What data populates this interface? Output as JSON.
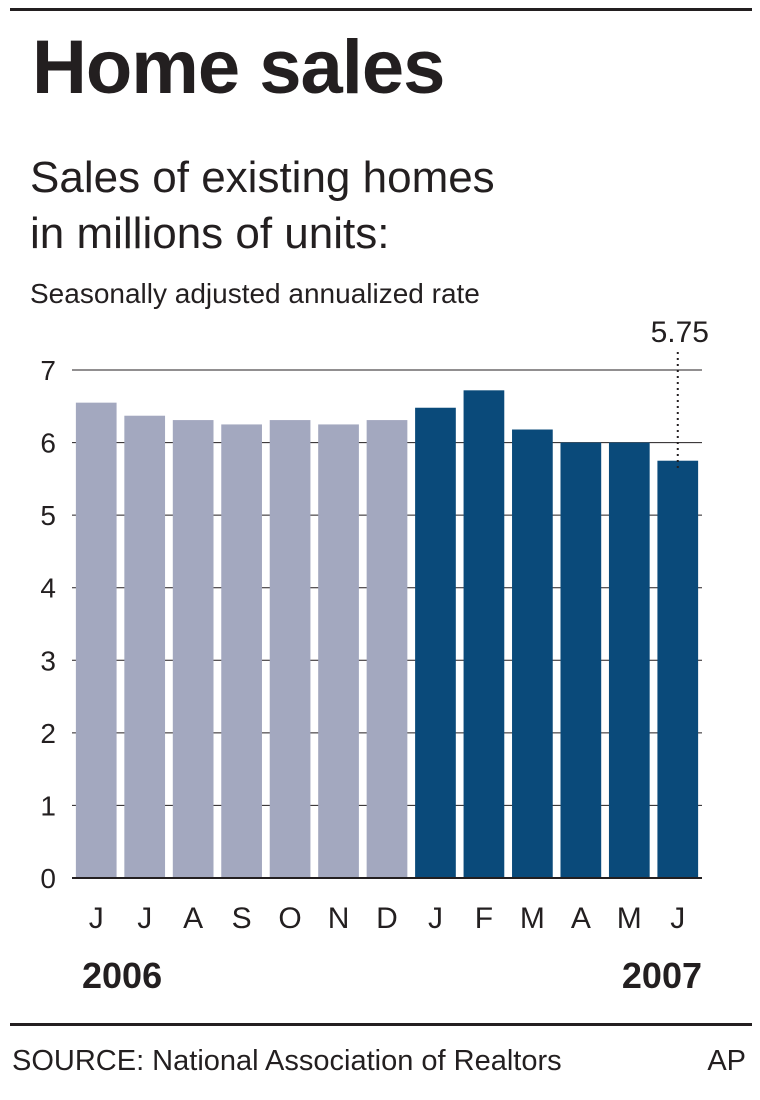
{
  "title": "Home sales",
  "subtitle_line1": "Sales of existing homes",
  "subtitle_line2": "in millions of units:",
  "note": "Seasonally adjusted annualized rate",
  "source": "SOURCE: National Association of Realtors",
  "credit": "AP",
  "colors": {
    "y2006": "#a3a8bf",
    "y2007": "#0a4a7a",
    "text": "#231f20",
    "grid": "#231f20"
  },
  "chart_data": {
    "type": "bar",
    "categories": [
      "J",
      "J",
      "A",
      "S",
      "O",
      "N",
      "D",
      "J",
      "F",
      "M",
      "A",
      "M",
      "J"
    ],
    "years": [
      "2006",
      "2007"
    ],
    "series": [
      {
        "name": "2006",
        "values": [
          6.55,
          6.37,
          6.31,
          6.25,
          6.31,
          6.25,
          6.31,
          null,
          null,
          null,
          null,
          null,
          null
        ]
      },
      {
        "name": "2007",
        "values": [
          null,
          null,
          null,
          null,
          null,
          null,
          null,
          6.48,
          6.72,
          6.18,
          6.0,
          6.0,
          5.75
        ]
      }
    ],
    "annotation": {
      "label": "5.75",
      "category_index": 12
    },
    "yticks": [
      0,
      1,
      2,
      3,
      4,
      5,
      6,
      7
    ],
    "ylim": [
      0,
      7
    ],
    "grid": true,
    "xlabel": "",
    "ylabel": ""
  }
}
